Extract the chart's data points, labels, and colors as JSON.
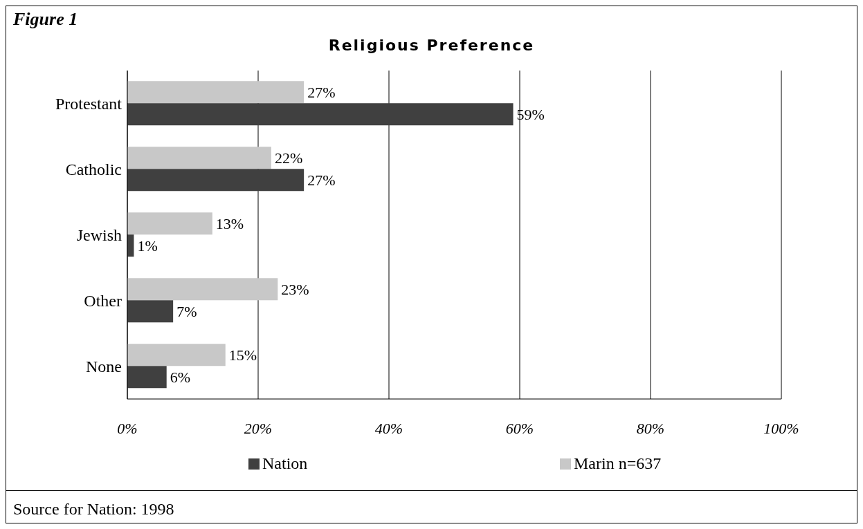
{
  "chart_data": {
    "type": "bar",
    "orientation": "horizontal",
    "title": "Religious Preference",
    "annotations": [
      "Figure 1",
      "Source for Nation: 1998"
    ],
    "categories": [
      "Protestant",
      "Catholic",
      "Jewish",
      "Other",
      "None"
    ],
    "series": [
      {
        "name": "Marin n=637",
        "color": "#c8c8c8",
        "values": [
          27,
          22,
          13,
          23,
          15
        ],
        "value_labels": [
          "27%",
          "22%",
          "13%",
          "23%",
          "15%"
        ]
      },
      {
        "name": "Nation",
        "color": "#404040",
        "values": [
          59,
          27,
          1,
          7,
          6
        ],
        "value_labels": [
          "59%",
          "27%",
          "1%",
          "7%",
          "6%"
        ]
      }
    ],
    "xlim": [
      0,
      100
    ],
    "xticks": [
      {
        "value": 0,
        "label": "0%"
      },
      {
        "value": 20,
        "label": "20%"
      },
      {
        "value": 40,
        "label": "40%"
      },
      {
        "value": 60,
        "label": "60%"
      },
      {
        "value": 80,
        "label": "80%"
      },
      {
        "value": 100,
        "label": "100%"
      }
    ],
    "grid": "x",
    "legend": "bottom"
  }
}
